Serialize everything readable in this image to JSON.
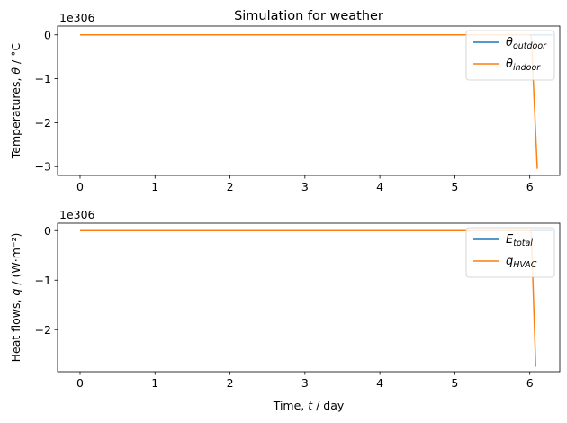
{
  "chart_data": [
    {
      "type": "line",
      "title": "Simulation for weather",
      "xlabel": "",
      "ylabel_prefix": "Temperatures, ",
      "ylabel_sym": "θ",
      "ylabel_suffix": " / °C",
      "offset_text": "1e306",
      "xlim": [
        -0.3,
        6.4
      ],
      "ylim": [
        -3.2,
        0.2
      ],
      "xticks": [
        "0",
        "1",
        "2",
        "3",
        "4",
        "5",
        "6"
      ],
      "yticks": [
        "0",
        "−1",
        "−2",
        "−3"
      ],
      "legend_position": "top-right",
      "series": [
        {
          "name_main": "θ",
          "name_sub": "outdoor",
          "color": "#1f77b4",
          "x": [
            0,
            1,
            2,
            3,
            4,
            5,
            6,
            6.3
          ],
          "y": [
            0,
            0,
            0,
            0,
            0,
            0,
            0,
            0
          ]
        },
        {
          "name_main": "θ",
          "name_sub": "indoor",
          "color": "#ff7f0e",
          "x": [
            0,
            1,
            2,
            3,
            4,
            5,
            6,
            6.02,
            6.1
          ],
          "y": [
            0,
            0,
            0,
            0,
            0,
            0,
            0,
            -0.05,
            -3.05
          ]
        }
      ]
    },
    {
      "type": "line",
      "title": "",
      "xlabel_prefix": "Time, ",
      "xlabel_sym": "t",
      "xlabel_suffix": " / day",
      "ylabel_prefix": "Heat flows, ",
      "ylabel_sym": "q",
      "ylabel_suffix": " / (W·m⁻²)",
      "offset_text": "1e306",
      "xlim": [
        -0.3,
        6.4
      ],
      "ylim": [
        -2.85,
        0.15
      ],
      "xticks": [
        "0",
        "1",
        "2",
        "3",
        "4",
        "5",
        "6"
      ],
      "yticks": [
        "0",
        "−1",
        "−2"
      ],
      "legend_position": "top-right",
      "series": [
        {
          "name_main": "E",
          "name_sub": "total",
          "color": "#1f77b4",
          "x": [
            0,
            1,
            2,
            3,
            4,
            5,
            6,
            6.3
          ],
          "y": [
            0,
            0,
            0,
            0,
            0,
            0,
            0,
            0
          ]
        },
        {
          "name_main": "q",
          "name_sub": "HVAC",
          "color": "#ff7f0e",
          "x": [
            0,
            1,
            2,
            3,
            4,
            5,
            6,
            6.02,
            6.08
          ],
          "y": [
            0,
            0,
            0,
            0,
            0,
            0,
            0,
            -0.05,
            -2.75
          ]
        }
      ]
    }
  ]
}
